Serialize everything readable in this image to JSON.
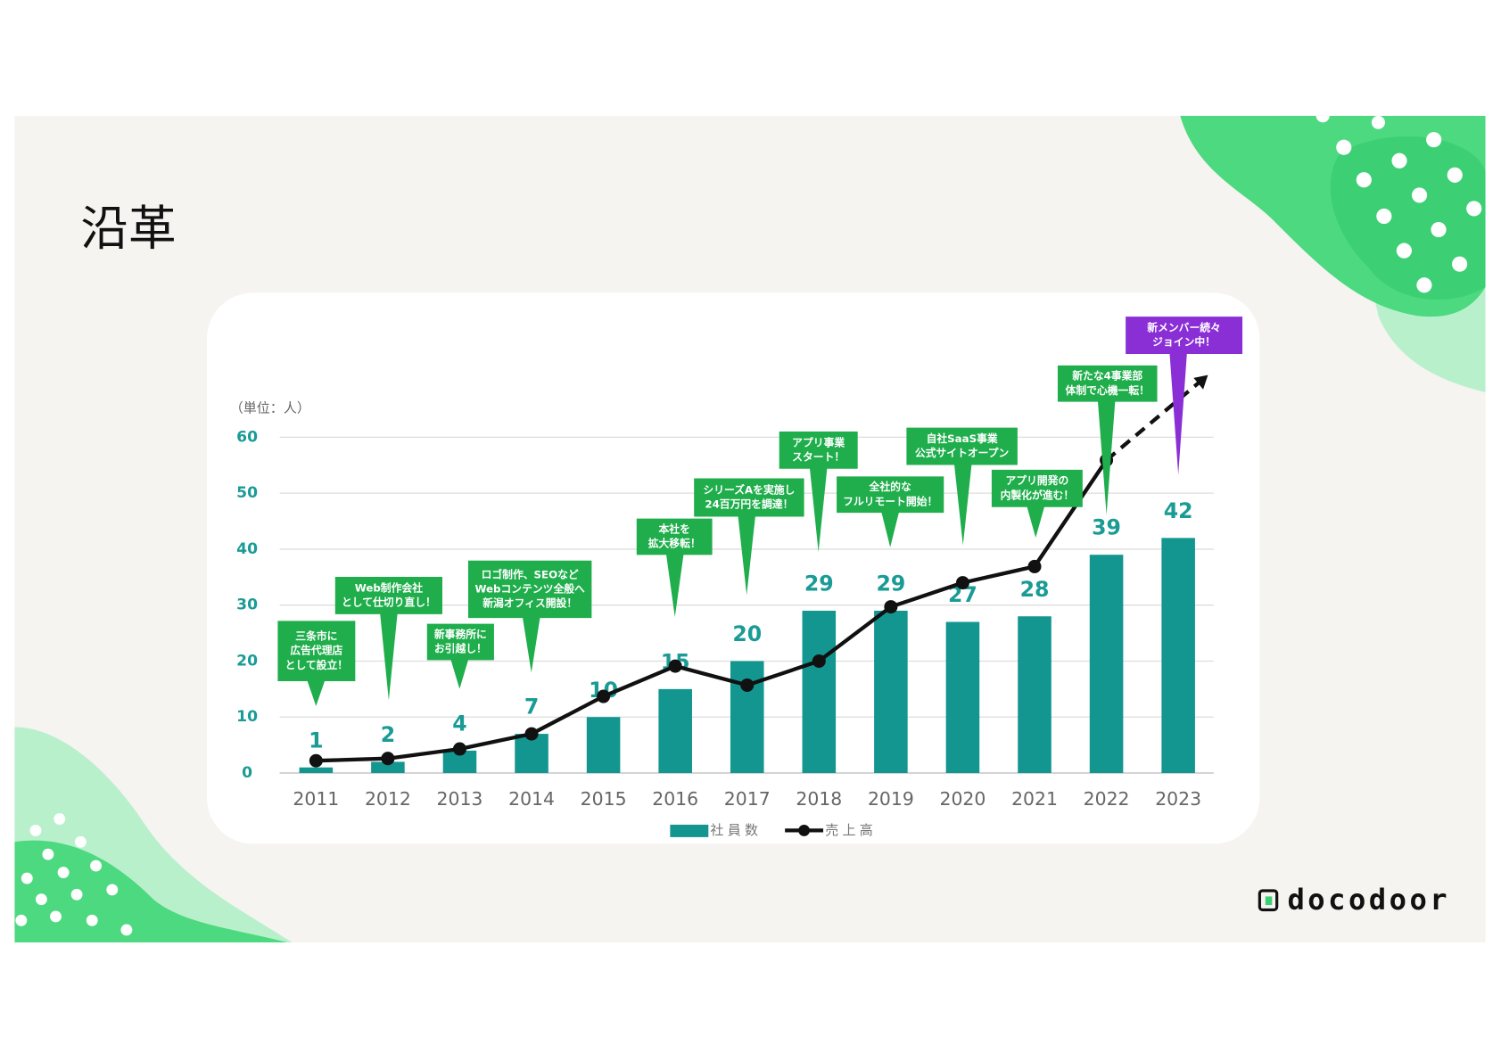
{
  "title": "沿革",
  "logo": "docodoor",
  "chart_data": {
    "type": "bar",
    "unit_label": "（単位：人）",
    "categories": [
      "2011",
      "2012",
      "2013",
      "2014",
      "2015",
      "2016",
      "2017",
      "2018",
      "2019",
      "2020",
      "2021",
      "2022",
      "2023"
    ],
    "series": [
      {
        "name": "社員数",
        "type": "bar",
        "color": "#12968f",
        "values": [
          1,
          2,
          4,
          7,
          10,
          15,
          20,
          29,
          29,
          27,
          28,
          39,
          42
        ]
      },
      {
        "name": "売上高",
        "type": "line",
        "color": "#111111",
        "values": [
          2.2,
          2.6,
          4.3,
          7,
          13.7,
          19.1,
          15.7,
          20,
          29.7,
          34,
          36.9,
          55.9,
          null
        ]
      }
    ],
    "ylim": [
      0,
      60
    ],
    "yticks": [
      0,
      10,
      20,
      30,
      40,
      50,
      60
    ],
    "grid": true,
    "legend": "bottom",
    "annotations": [
      {
        "lines": [
          "三条市に",
          "広告代理店",
          "として設立！"
        ]
      },
      {
        "lines": [
          "Web制作会社",
          "として仕切り直し！"
        ]
      },
      {
        "lines": [
          "新事務所に",
          "お引越し！"
        ]
      },
      {
        "lines": [
          "ロゴ制作、SEOなど",
          "Webコンテンツ全般へ",
          "新潟オフィス開設！"
        ]
      },
      {
        "lines": [
          "本社を",
          "拡大移転！"
        ]
      },
      {
        "lines": [
          "シリーズAを実施し",
          "24百万円を調達！"
        ]
      },
      {
        "lines": [
          "アプリ事業",
          "スタート！"
        ]
      },
      {
        "lines": [
          "全社的な",
          "フルリモート開始！"
        ]
      },
      {
        "lines": [
          "自社SaaS事業",
          "公式サイトオープン"
        ]
      },
      {
        "lines": [
          "アプリ開発の",
          "内製化が進む！"
        ]
      },
      {
        "lines": [
          "新たな4事業部",
          "体制で心機一転！"
        ]
      },
      {
        "lines": [
          "新メンバー続々",
          "ジョイン中！"
        ]
      }
    ]
  }
}
